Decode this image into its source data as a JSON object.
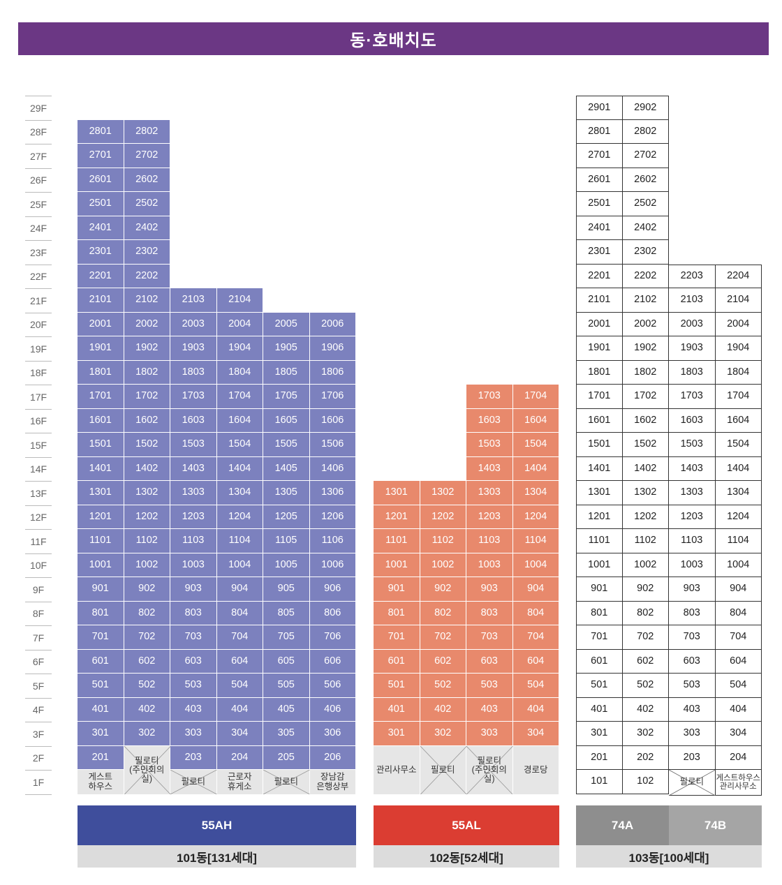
{
  "title": "동·호배치도",
  "floors": [
    "29F",
    "28F",
    "27F",
    "26F",
    "25F",
    "24F",
    "23F",
    "22F",
    "21F",
    "20F",
    "19F",
    "18F",
    "17F",
    "16F",
    "15F",
    "14F",
    "13F",
    "12F",
    "11F",
    "10F",
    "9F",
    "8F",
    "7F",
    "6F",
    "5F",
    "4F",
    "3F",
    "2F",
    "1F"
  ],
  "colors": {
    "b101": "#7c81be",
    "b102": "#e8896c",
    "type101": "#3f4e9c",
    "type102": "#db3d32",
    "type74A": "#8e8e8e",
    "type74B": "#a5a5a5",
    "header": "#6b3784"
  },
  "buildings": [
    {
      "id": "101",
      "name": "101동[131세대]",
      "types": [
        {
          "label": "55AH",
          "color": "#3f4e9c"
        }
      ],
      "columns": [
        {
          "line": "01",
          "top": 28,
          "base": 2,
          "ground": {
            "label": "게스트\n하우스",
            "kind": "text"
          }
        },
        {
          "line": "02",
          "top": 28,
          "base": 3,
          "ground": {
            "label": "필로티\n(주민회의실)",
            "kind": "pilotis"
          }
        },
        {
          "line": "03",
          "top": 21,
          "base": 2,
          "ground": {
            "label": "필로티",
            "kind": "pilotis"
          }
        },
        {
          "line": "04",
          "top": 21,
          "base": 2,
          "ground": {
            "label": "근로자\n휴게소",
            "kind": "text"
          }
        },
        {
          "line": "05",
          "top": 20,
          "base": 2,
          "ground": {
            "label": "필로티",
            "kind": "pilotis"
          }
        },
        {
          "line": "06",
          "top": 20,
          "base": 2,
          "ground": {
            "label": "장남감\n은행상부",
            "kind": "text"
          }
        }
      ]
    },
    {
      "id": "102",
      "name": "102동[52세대]",
      "types": [
        {
          "label": "55AL",
          "color": "#db3d32"
        }
      ],
      "columns": [
        {
          "line": "01",
          "top": 13,
          "base": 3,
          "ground": {
            "label": "관리사무소",
            "kind": "text"
          }
        },
        {
          "line": "02",
          "top": 13,
          "base": 3,
          "ground": {
            "label": "필로티",
            "kind": "pilotis"
          }
        },
        {
          "line": "03",
          "top": 17,
          "base": 3,
          "ground": {
            "label": "필로티\n(주민회의실)",
            "kind": "pilotis"
          }
        },
        {
          "line": "04",
          "top": 17,
          "base": 3,
          "ground": {
            "label": "경로당",
            "kind": "text"
          }
        }
      ]
    },
    {
      "id": "103",
      "name": "103동[100세대]",
      "types": [
        {
          "label": "74A",
          "color": "#8e8e8e"
        },
        {
          "label": "74B",
          "color": "#a5a5a5"
        }
      ],
      "columns": [
        {
          "line": "01",
          "top": 29,
          "base": 1,
          "ground": null
        },
        {
          "line": "02",
          "top": 29,
          "base": 1,
          "ground": null
        },
        {
          "line": "03",
          "top": 22,
          "base": 2,
          "ground": {
            "label": "필로티",
            "kind": "pilotis"
          }
        },
        {
          "line": "04",
          "top": 22,
          "base": 2,
          "ground": {
            "label": "게스트하우스\n관리사무소",
            "kind": "text"
          }
        }
      ]
    }
  ]
}
